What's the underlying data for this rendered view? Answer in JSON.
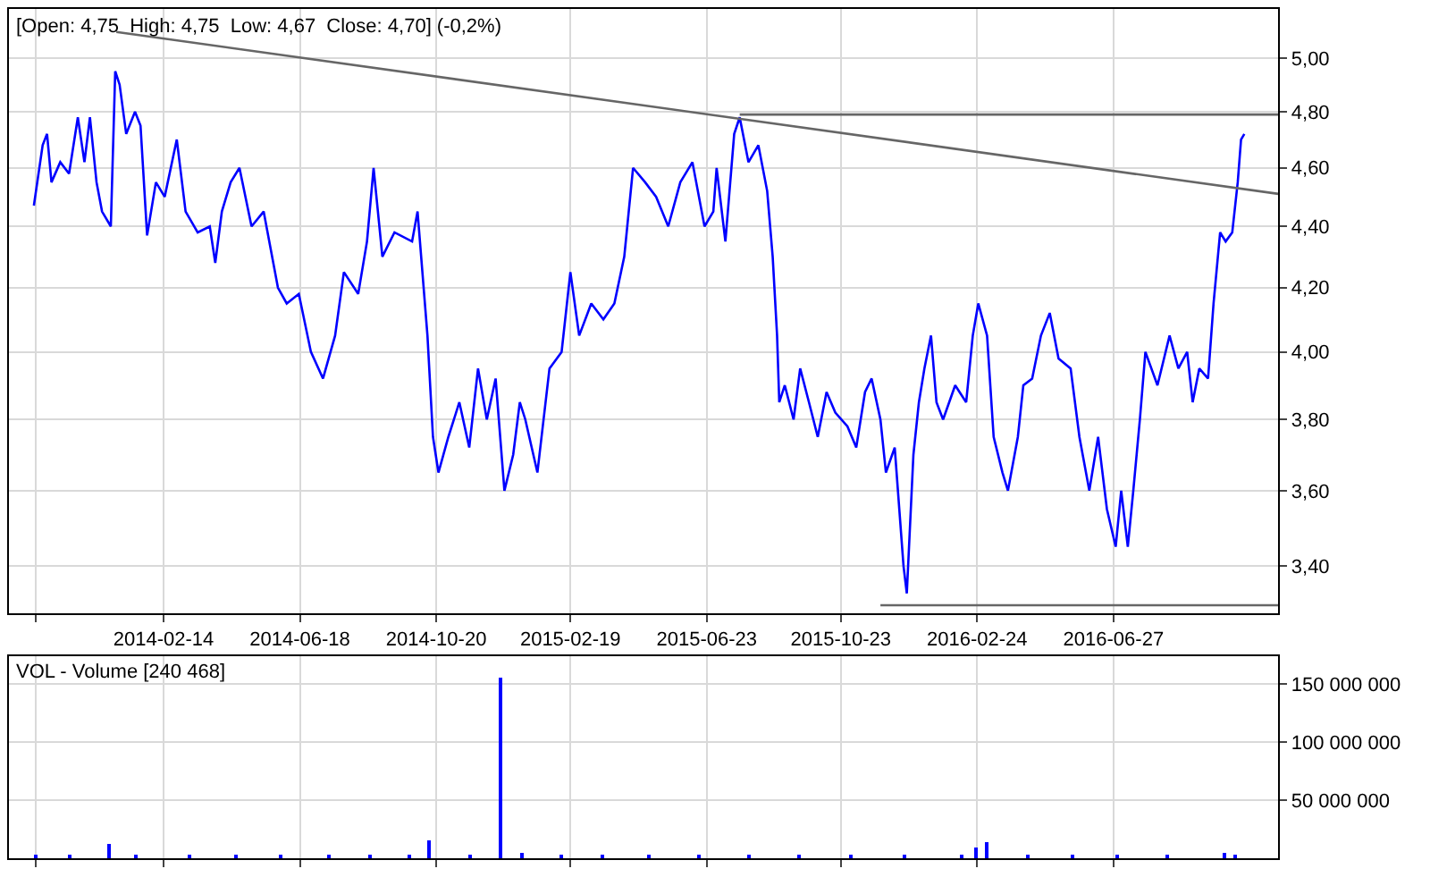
{
  "chart_data": [
    {
      "type": "line",
      "title": "[Open: 4,75  High: 4,75  Low: 4,67  Close: 4,70] (-0,2%)",
      "log": true,
      "grid": true,
      "marker": "none",
      "line_style": "solid",
      "xlim": [
        "2013-09-26",
        "2016-11-24"
      ],
      "xticks": [
        {
          "value": "2013-10-21",
          "label": null
        },
        {
          "value": "2014-02-14",
          "label": "2014-02-14"
        },
        {
          "value": "2014-06-18",
          "label": "2014-06-18"
        },
        {
          "value": "2014-10-20",
          "label": "2014-10-20"
        },
        {
          "value": "2015-02-19",
          "label": "2015-02-19"
        },
        {
          "value": "2015-06-23",
          "label": "2015-06-23"
        },
        {
          "value": "2015-10-23",
          "label": "2015-10-23"
        },
        {
          "value": "2016-02-24",
          "label": "2016-02-24"
        },
        {
          "value": "2016-06-27",
          "label": "2016-06-27"
        }
      ],
      "ylim": [
        3.28,
        5.19
      ],
      "yticks": [
        {
          "value": 3.4,
          "label": "3,40"
        },
        {
          "value": 3.6,
          "label": "3,60"
        },
        {
          "value": 3.8,
          "label": "3,80"
        },
        {
          "value": 4.0,
          "label": "4,00"
        },
        {
          "value": 4.2,
          "label": "4,20"
        },
        {
          "value": 4.4,
          "label": "4,40"
        },
        {
          "value": 4.6,
          "label": "4,60"
        },
        {
          "value": 4.8,
          "label": "4,80"
        },
        {
          "value": 5.0,
          "label": "5,00"
        }
      ],
      "series": [
        {
          "color": "#0000ff",
          "x": [
            "2013-10-19",
            "2013-10-27",
            "2013-10-31",
            "2013-11-04",
            "2013-11-12",
            "2013-11-20",
            "2013-11-28",
            "2013-12-04",
            "2013-12-09",
            "2013-12-15",
            "2013-12-20",
            "2013-12-28",
            "2014-01-01",
            "2014-01-05",
            "2014-01-11",
            "2014-01-19",
            "2014-01-24",
            "2014-01-30",
            "2014-02-07",
            "2014-02-15",
            "2014-02-26",
            "2014-03-06",
            "2014-03-17",
            "2014-03-28",
            "2014-04-02",
            "2014-04-08",
            "2014-04-16",
            "2014-04-24",
            "2014-05-05",
            "2014-05-16",
            "2014-05-29",
            "2014-06-06",
            "2014-06-17",
            "2014-06-28",
            "2014-07-09",
            "2014-07-20",
            "2014-07-28",
            "2014-08-10",
            "2014-08-18",
            "2014-08-24",
            "2014-09-01",
            "2014-09-12",
            "2014-09-28",
            "2014-10-03",
            "2014-10-12",
            "2014-10-17",
            "2014-10-22",
            "2014-10-31",
            "2014-11-10",
            "2014-11-19",
            "2014-11-27",
            "2014-12-05",
            "2014-12-13",
            "2014-12-21",
            "2014-12-29",
            "2015-01-04",
            "2015-01-09",
            "2015-01-20",
            "2015-01-31",
            "2015-02-11",
            "2015-02-19",
            "2015-02-27",
            "2015-03-10",
            "2015-03-21",
            "2015-03-31",
            "2015-04-09",
            "2015-04-17",
            "2015-04-28",
            "2015-05-08",
            "2015-05-19",
            "2015-05-30",
            "2015-06-10",
            "2015-06-21",
            "2015-06-29",
            "2015-07-02",
            "2015-07-10",
            "2015-07-18",
            "2015-07-23",
            "2015-07-31",
            "2015-08-09",
            "2015-08-17",
            "2015-08-22",
            "2015-08-26",
            "2015-08-28",
            "2015-09-02",
            "2015-09-10",
            "2015-09-16",
            "2015-09-24",
            "2015-10-02",
            "2015-10-10",
            "2015-10-18",
            "2015-10-29",
            "2015-11-06",
            "2015-11-14",
            "2015-11-20",
            "2015-11-28",
            "2015-12-03",
            "2015-12-11",
            "2015-12-19",
            "2015-12-22",
            "2015-12-28",
            "2016-01-02",
            "2016-01-07",
            "2016-01-13",
            "2016-01-18",
            "2016-01-24",
            "2016-02-04",
            "2016-02-14",
            "2016-02-20",
            "2016-02-25",
            "2016-03-04",
            "2016-03-10",
            "2016-03-18",
            "2016-03-23",
            "2016-04-01",
            "2016-04-06",
            "2016-04-14",
            "2016-04-22",
            "2016-04-30",
            "2016-05-08",
            "2016-05-19",
            "2016-05-27",
            "2016-06-05",
            "2016-06-13",
            "2016-06-21",
            "2016-06-29",
            "2016-07-04",
            "2016-07-10",
            "2016-07-15",
            "2016-07-21",
            "2016-07-26",
            "2016-08-06",
            "2016-08-17",
            "2016-08-25",
            "2016-09-02",
            "2016-09-07",
            "2016-09-13",
            "2016-09-21",
            "2016-09-26",
            "2016-10-02",
            "2016-10-07",
            "2016-10-13",
            "2016-10-18",
            "2016-10-21",
            "2016-10-24"
          ],
          "values": [
            4.47,
            4.68,
            4.72,
            4.55,
            4.62,
            4.58,
            4.78,
            4.62,
            4.78,
            4.55,
            4.45,
            4.4,
            4.95,
            4.9,
            4.72,
            4.8,
            4.75,
            4.37,
            4.55,
            4.5,
            4.7,
            4.45,
            4.38,
            4.4,
            4.28,
            4.45,
            4.55,
            4.6,
            4.4,
            4.45,
            4.2,
            4.15,
            4.18,
            4.0,
            3.92,
            4.05,
            4.25,
            4.18,
            4.35,
            4.6,
            4.3,
            4.38,
            4.35,
            4.45,
            4.05,
            3.75,
            3.65,
            3.75,
            3.85,
            3.72,
            3.95,
            3.8,
            3.92,
            3.6,
            3.7,
            3.85,
            3.8,
            3.65,
            3.95,
            4.0,
            4.25,
            4.05,
            4.15,
            4.1,
            4.15,
            4.3,
            4.6,
            4.55,
            4.5,
            4.4,
            4.55,
            4.62,
            4.4,
            4.45,
            4.6,
            4.35,
            4.72,
            4.78,
            4.62,
            4.68,
            4.52,
            4.3,
            4.05,
            3.85,
            3.9,
            3.8,
            3.95,
            3.85,
            3.75,
            3.88,
            3.82,
            3.78,
            3.72,
            3.88,
            3.92,
            3.8,
            3.65,
            3.72,
            3.4,
            3.33,
            3.7,
            3.85,
            3.95,
            4.05,
            3.85,
            3.8,
            3.9,
            3.85,
            4.05,
            4.15,
            4.05,
            3.75,
            3.65,
            3.6,
            3.75,
            3.9,
            3.92,
            4.05,
            4.12,
            3.98,
            3.95,
            3.75,
            3.6,
            3.75,
            3.55,
            3.45,
            3.6,
            3.45,
            3.6,
            3.8,
            4.0,
            3.9,
            4.05,
            3.95,
            4.0,
            3.85,
            3.95,
            3.92,
            4.15,
            4.38,
            4.35,
            4.38,
            4.55,
            4.7,
            4.72
          ]
        },
        {
          "type": "line",
          "color": "#666666",
          "x": [
            "2014-01-02",
            "2016-11-24"
          ],
          "values": [
            5.1,
            4.51
          ]
        },
        {
          "type": "line",
          "color": "#666666",
          "x": [
            "2015-07-23",
            "2016-11-24"
          ],
          "values": [
            4.79,
            4.79
          ]
        },
        {
          "type": "line",
          "color": "#666666",
          "x": [
            "2015-11-28",
            "2016-11-24"
          ],
          "values": [
            3.3,
            3.3
          ]
        }
      ]
    },
    {
      "type": "bar",
      "title": "VOL - Volume [240 468]",
      "grid": true,
      "tick_labels": "y",
      "xlim": [
        "2013-09-26",
        "2016-11-24"
      ],
      "xticks": [
        {
          "value": "2013-10-21",
          "label": null
        },
        {
          "value": "2014-02-14",
          "label": null
        },
        {
          "value": "2014-06-18",
          "label": null
        },
        {
          "value": "2014-10-20",
          "label": null
        },
        {
          "value": "2015-02-19",
          "label": null
        },
        {
          "value": "2015-06-23",
          "label": null
        },
        {
          "value": "2015-10-23",
          "label": null
        },
        {
          "value": "2016-02-24",
          "label": null
        },
        {
          "value": "2016-06-27",
          "label": null
        }
      ],
      "ylim": [
        0,
        174000000
      ],
      "yticks": [
        {
          "value": 50000000,
          "label": "50 000 000"
        },
        {
          "value": 100000000,
          "label": "100 000 000"
        },
        {
          "value": 150000000,
          "label": "150 000 000"
        }
      ],
      "series": [
        {
          "color": "#0000ff",
          "x": [
            "2013-10-21",
            "2013-11-20",
            "2013-12-26",
            "2014-01-20",
            "2014-03-10",
            "2014-04-20",
            "2014-06-01",
            "2014-07-15",
            "2014-08-20",
            "2014-09-25",
            "2014-10-14",
            "2014-11-20",
            "2014-12-17",
            "2015-01-05",
            "2015-02-10",
            "2015-03-20",
            "2015-05-01",
            "2015-06-15",
            "2015-08-01",
            "2015-09-15",
            "2015-11-01",
            "2015-12-20",
            "2016-02-10",
            "2016-02-23",
            "2016-03-03",
            "2016-04-10",
            "2016-05-20",
            "2016-07-01",
            "2016-08-15",
            "2016-10-05",
            "2016-10-15"
          ],
          "values": [
            2000000,
            2000000,
            13000000,
            3000000,
            2000000,
            2000000,
            2000000,
            2000000,
            2000000,
            2000000,
            15000000,
            2000000,
            155000000,
            4000000,
            2000000,
            2000000,
            2000000,
            2000000,
            2000000,
            2000000,
            2000000,
            2000000,
            2000000,
            10000000,
            14000000,
            3000000,
            2000000,
            2000000,
            2000000,
            4000000,
            3000000
          ]
        }
      ]
    }
  ]
}
